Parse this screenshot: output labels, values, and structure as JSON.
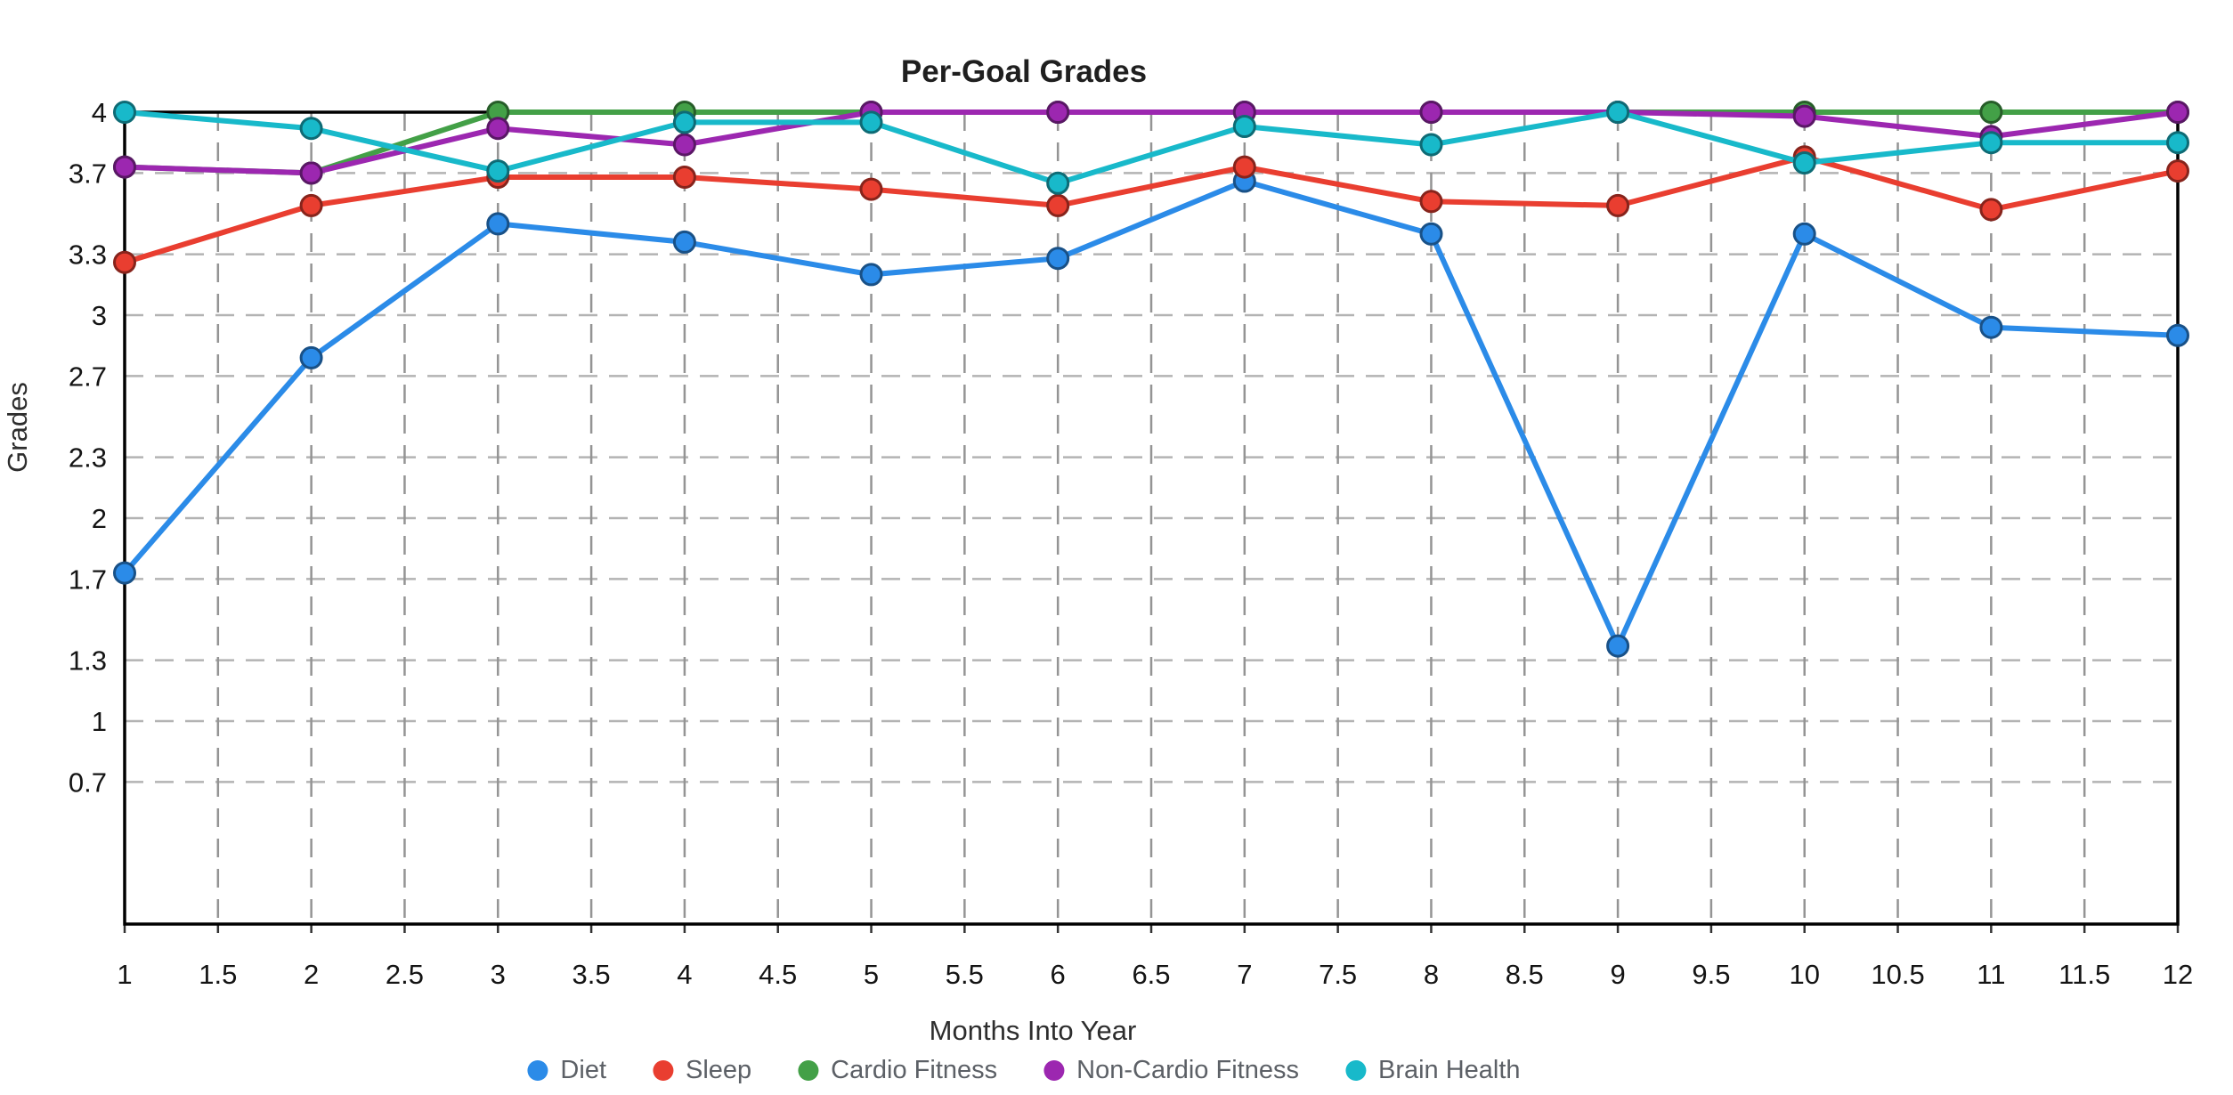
{
  "chart_data": {
    "type": "line",
    "title": "Per-Goal Grades",
    "xlabel": "Months Into Year",
    "ylabel": "Grades",
    "xlim": [
      1,
      12
    ],
    "ylim": [
      0,
      4
    ],
    "grid": "dashed-both-axes",
    "legend_position": "bottom",
    "x": [
      1,
      2,
      3,
      4,
      5,
      6,
      7,
      8,
      9,
      10,
      11,
      12
    ],
    "x_tick_labels": [
      "1",
      "1.5",
      "2",
      "2.5",
      "3",
      "3.5",
      "4",
      "4.5",
      "5",
      "5.5",
      "6",
      "6.5",
      "7",
      "7.5",
      "8",
      "8.5",
      "9",
      "9.5",
      "10",
      "10.5",
      "11",
      "11.5",
      "12"
    ],
    "y_tick_labels": [
      "0.7",
      "1",
      "1.3",
      "1.7",
      "2",
      "2.3",
      "2.7",
      "3",
      "3.3",
      "3.7",
      "4"
    ],
    "series": [
      {
        "name": "Diet",
        "color": "#2B8BE8",
        "values": [
          1.73,
          2.79,
          3.45,
          3.36,
          3.2,
          3.28,
          3.66,
          3.4,
          1.37,
          3.4,
          2.94,
          2.9
        ]
      },
      {
        "name": "Sleep",
        "color": "#E93E30",
        "values": [
          3.26,
          3.54,
          3.68,
          3.68,
          3.62,
          3.54,
          3.73,
          3.56,
          3.54,
          3.78,
          3.52,
          3.71
        ]
      },
      {
        "name": "Cardio Fitness",
        "color": "#43A047",
        "values": [
          3.73,
          3.7,
          4.0,
          4.0,
          4.0,
          4.0,
          4.0,
          4.0,
          4.0,
          4.0,
          4.0,
          4.0
        ]
      },
      {
        "name": "Non-Cardio Fitness",
        "color": "#9C27B0",
        "values": [
          3.73,
          3.7,
          3.92,
          3.84,
          4.0,
          4.0,
          4.0,
          4.0,
          4.0,
          3.98,
          3.88,
          4.0
        ]
      },
      {
        "name": "Brain Health",
        "color": "#18B9CA",
        "values": [
          4.0,
          3.92,
          3.71,
          3.95,
          3.95,
          3.65,
          3.93,
          3.84,
          4.0,
          3.75,
          3.85,
          3.85
        ]
      }
    ]
  }
}
